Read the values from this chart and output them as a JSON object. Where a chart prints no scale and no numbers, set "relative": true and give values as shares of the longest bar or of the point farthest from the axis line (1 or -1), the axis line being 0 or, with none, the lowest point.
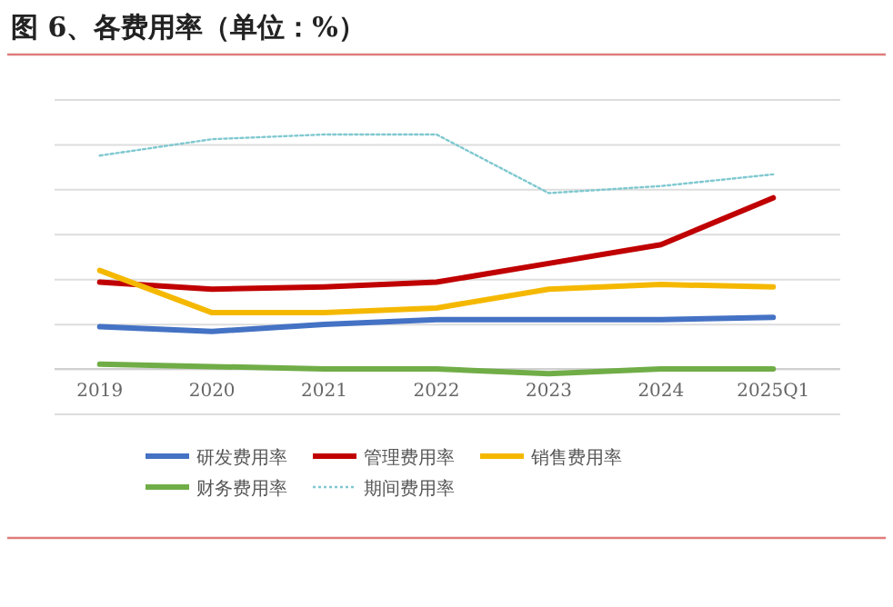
{
  "chart_data": {
    "type": "line",
    "title": "图 6、各费用率（单位：%）",
    "relative": true,
    "grid": "y",
    "legend": "bottom",
    "line_style": "solid",
    "marker": "none",
    "categories": [
      "2019",
      "2020",
      "2021",
      "2022",
      "2023",
      "2024",
      "2025Q1"
    ],
    "series": [
      {
        "name": "研发费用率",
        "color": "#4472c4",
        "values": [
          0.18,
          0.16,
          0.19,
          0.21,
          0.21,
          0.21,
          0.22
        ]
      },
      {
        "name": "管理费用率",
        "color": "#c00000",
        "values": [
          0.37,
          0.34,
          0.35,
          0.37,
          0.45,
          0.53,
          0.73
        ]
      },
      {
        "name": "销售费用率",
        "color": "#f5b800",
        "values": [
          0.42,
          0.24,
          0.24,
          0.26,
          0.34,
          0.36,
          0.35
        ]
      },
      {
        "name": "财务费用率",
        "color": "#70ad47",
        "values": [
          0.02,
          0.01,
          0,
          0,
          -0.02,
          0,
          0
        ]
      },
      {
        "name": "期间费用率",
        "color": "#7fc8d0",
        "line_style": "dotted",
        "values": [
          0.91,
          0.98,
          1,
          1,
          0.75,
          0.78,
          0.83
        ]
      }
    ]
  }
}
